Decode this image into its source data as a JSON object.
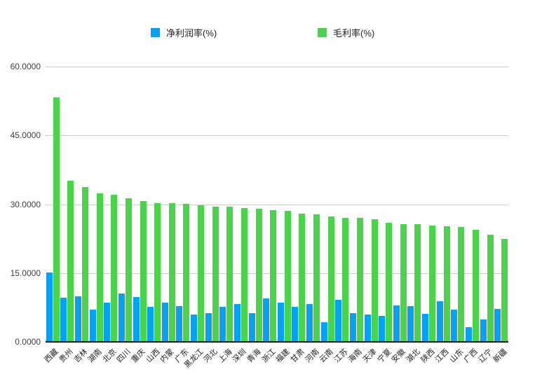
{
  "colors": {
    "net_profit_blue": "#06A1F2",
    "gross_margin_green": "#4CD34C",
    "gridline": "#cccccc",
    "axis_line": "#111111",
    "tick_text": "#404040",
    "category_text": "#222222",
    "background": "#ffffff"
  },
  "legend": {
    "position": "top",
    "items": [
      {
        "label": "净利润率(%)",
        "color": "#06A1F2"
      },
      {
        "label": "毛利率(%)",
        "color": "#4CD34C"
      }
    ]
  },
  "y_axis": {
    "tick_labels": [
      "60.0000",
      "45.0000",
      "30.0000",
      "15.0000",
      "0.0000"
    ],
    "min": 0,
    "max": 60
  },
  "chart_data": {
    "type": "bar",
    "title": "",
    "xlabel": "",
    "ylabel": "",
    "ylim": [
      0,
      60
    ],
    "grid": true,
    "legend_position": "top",
    "categories": [
      "西藏",
      "贵州",
      "吉林",
      "湖南",
      "北京",
      "四川",
      "重庆",
      "山西",
      "内蒙",
      "广东",
      "黑龙江",
      "河北",
      "上海",
      "深圳",
      "青海",
      "浙江",
      "福建",
      "甘肃",
      "河南",
      "云南",
      "江苏",
      "海南",
      "天津",
      "宁夏",
      "安徽",
      "湖北",
      "陕西",
      "江西",
      "山东",
      "广西",
      "辽宁",
      "新疆"
    ],
    "series": [
      {
        "name": "净利润率(%)",
        "color": "#06A1F2",
        "values": [
          15.1,
          9.6,
          10.0,
          7.0,
          8.6,
          10.6,
          9.8,
          7.6,
          8.6,
          7.8,
          6.0,
          6.3,
          7.7,
          8.3,
          6.3,
          9.4,
          8.5,
          7.7,
          8.2,
          4.3,
          9.2,
          6.3,
          5.9,
          5.6,
          7.9,
          7.8,
          6.1,
          8.9,
          7.1,
          3.2,
          4.9,
          7.2
        ]
      },
      {
        "name": "毛利率(%)",
        "color": "#4CD34C",
        "values": [
          53.3,
          35.1,
          33.8,
          32.4,
          32.0,
          31.3,
          30.7,
          30.3,
          30.2,
          30.1,
          29.7,
          29.5,
          29.4,
          29.2,
          29.0,
          28.7,
          28.5,
          28.0,
          27.8,
          27.4,
          27.1,
          27.0,
          26.7,
          26.0,
          25.6,
          25.6,
          25.3,
          25.2,
          25.0,
          24.5,
          23.3,
          22.5
        ]
      }
    ]
  }
}
